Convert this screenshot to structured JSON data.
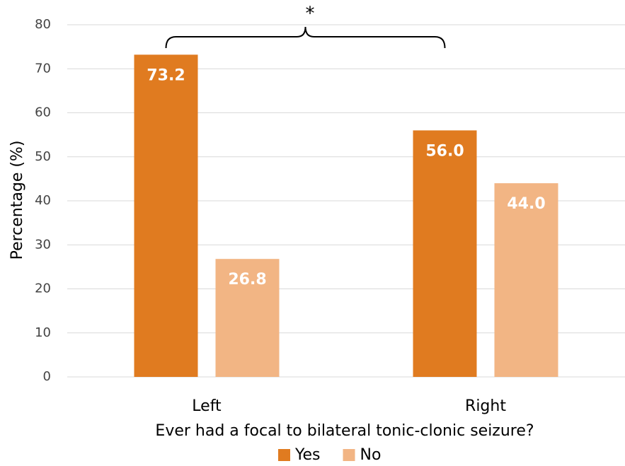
{
  "chart_data": {
    "type": "bar",
    "categories": [
      "Left",
      "Right"
    ],
    "series": [
      {
        "name": "Yes",
        "color": "#e07b20",
        "values": [
          73.2,
          56
        ],
        "value_labels": [
          "73.2",
          "56.0"
        ]
      },
      {
        "name": "No",
        "color": "#f2b584",
        "values": [
          26.8,
          44
        ],
        "value_labels": [
          "26.8",
          "44.0"
        ]
      }
    ],
    "x_label": "Ever had a focal to bilateral tonic-clonic seizure?",
    "y_label": "Percentage (%)",
    "annotation": "*",
    "ylim": [
      0,
      80
    ],
    "yticks": [
      0,
      10,
      20,
      30,
      40,
      50,
      60,
      70,
      80
    ],
    "grid": true,
    "legend": "bottom"
  }
}
